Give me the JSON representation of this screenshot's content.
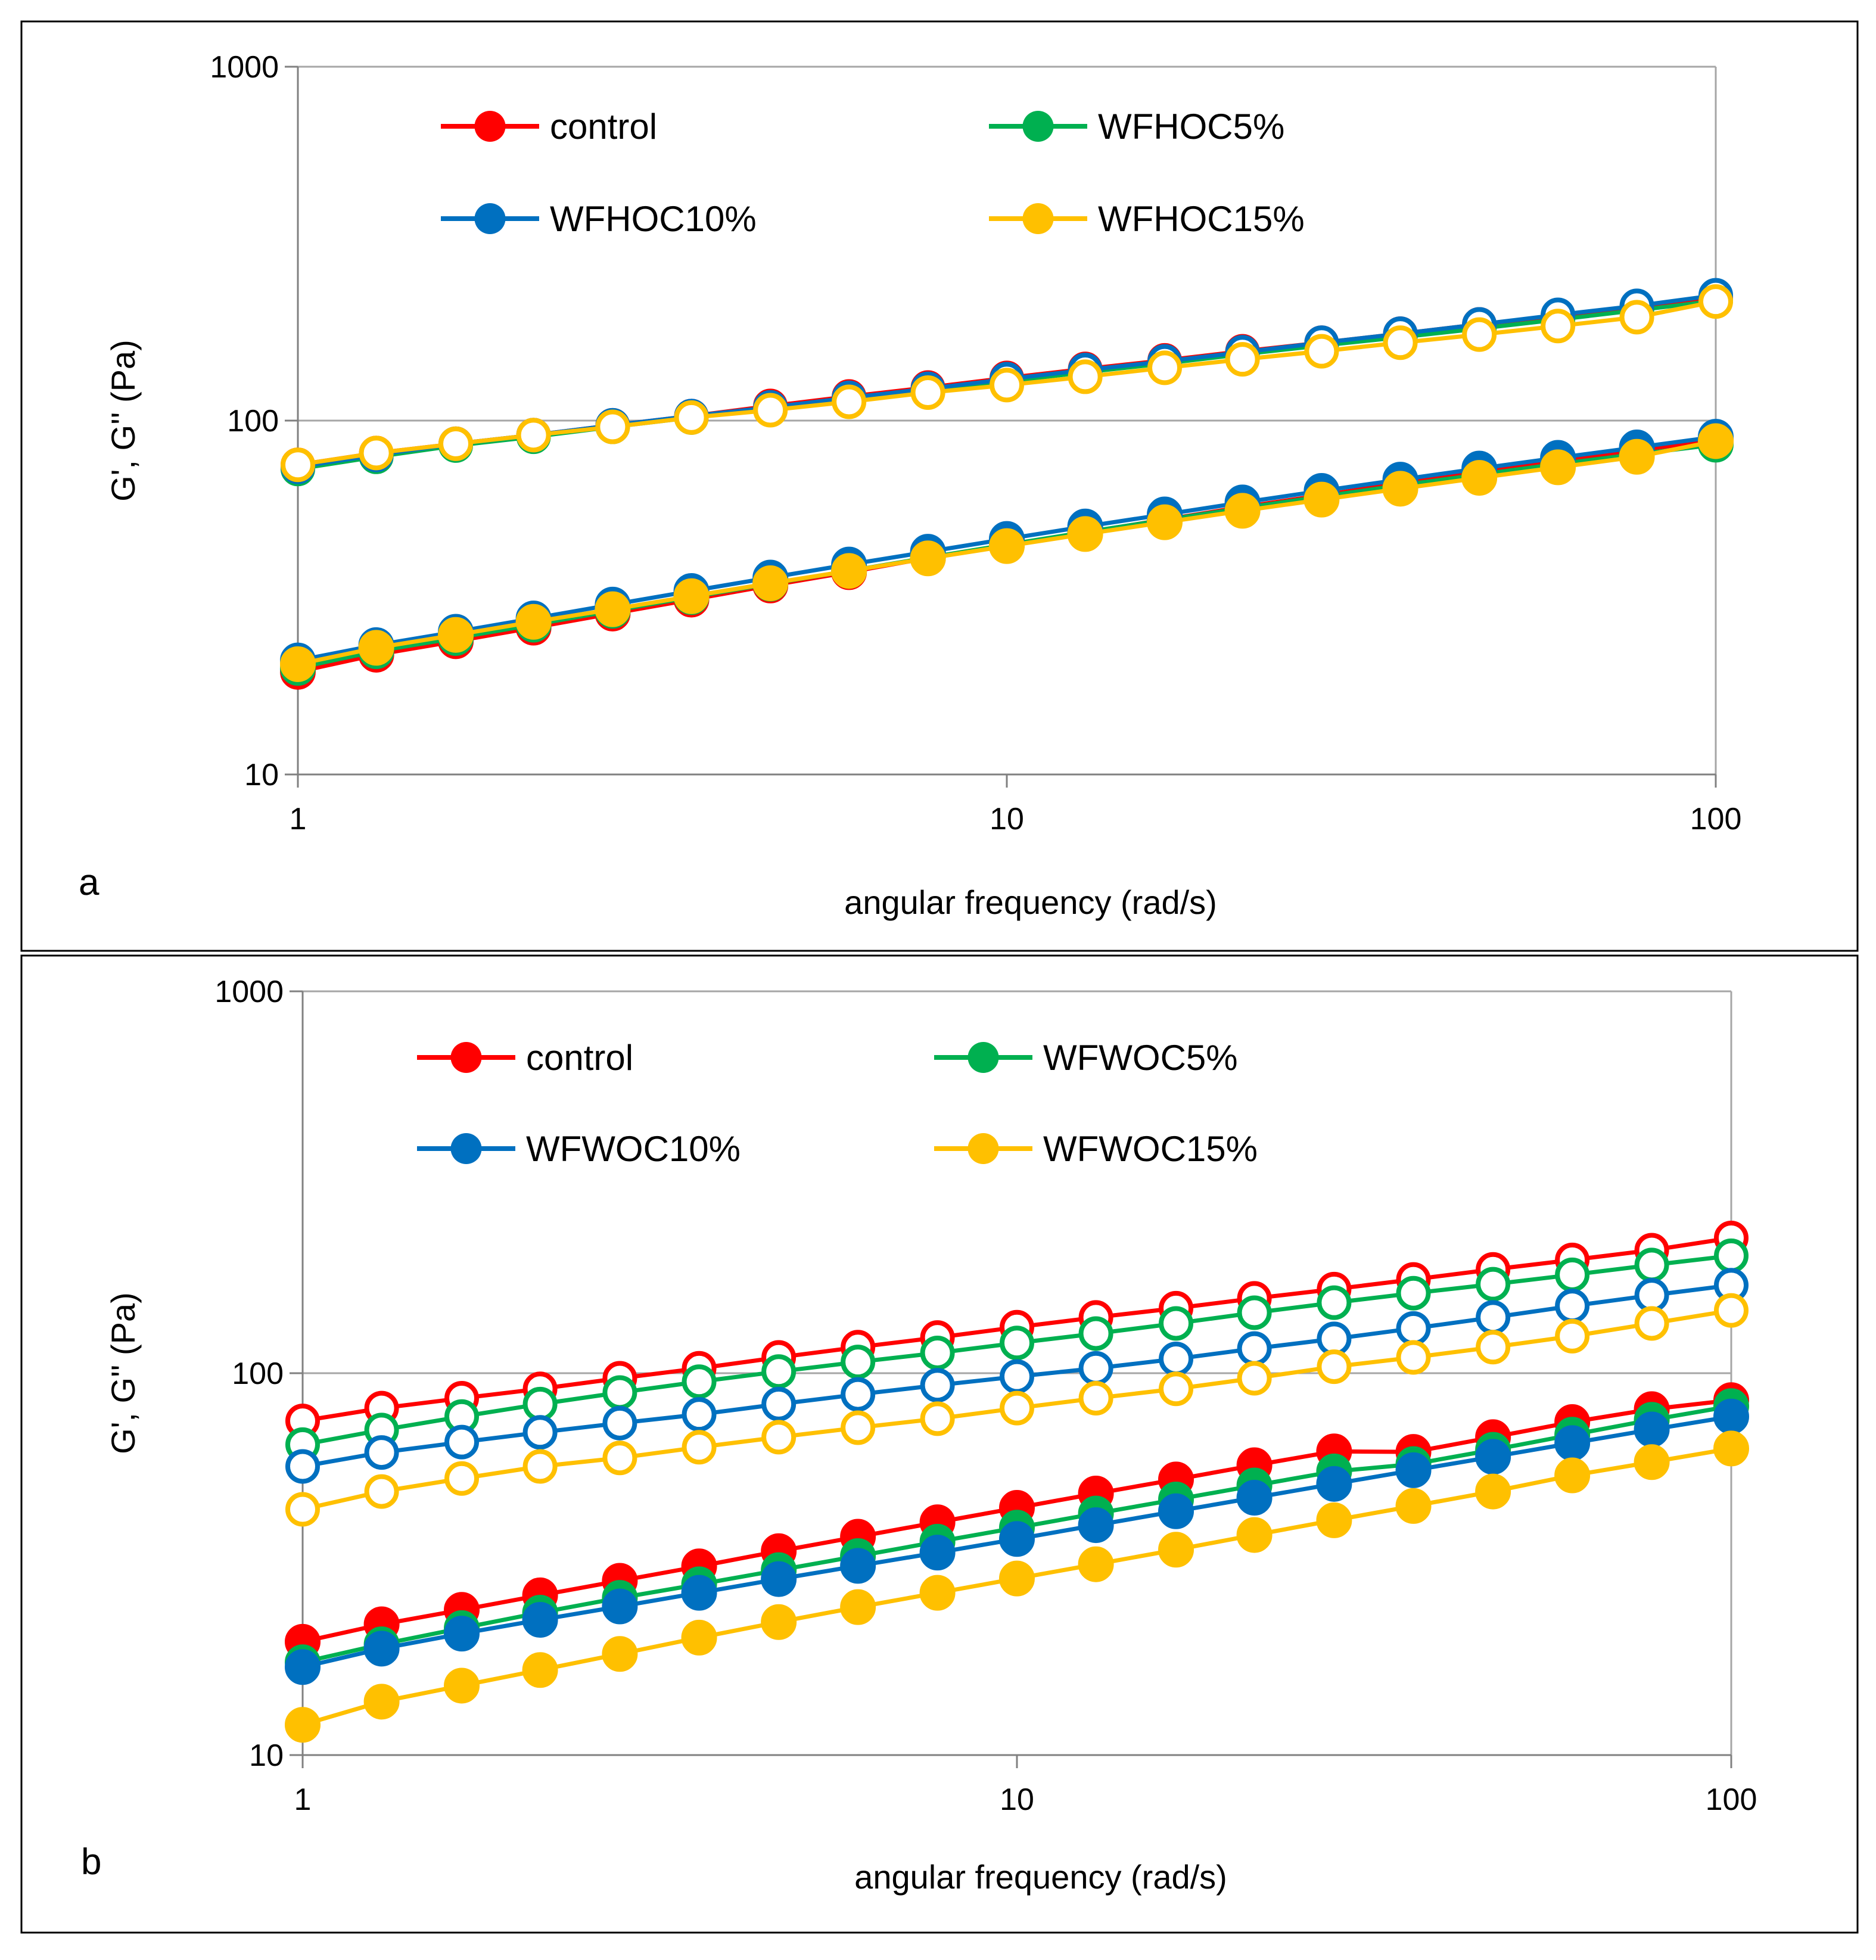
{
  "chart_data": [
    {
      "panel": "a",
      "type": "line",
      "scale": "log-log",
      "title": "",
      "xlabel": "angular frequency (rad/s)",
      "ylabel": "G', G'' (Pa)",
      "xlim": [
        1,
        100
      ],
      "ylim": [
        10,
        1000
      ],
      "x_ticks": [
        "1",
        "10",
        "100"
      ],
      "y_ticks": [
        "10",
        "100",
        "1000"
      ],
      "grid": "horizontal major lines",
      "legend_position": "top, inside plot",
      "x": [
        1,
        1.29,
        1.67,
        2.15,
        2.78,
        3.59,
        4.64,
        5.99,
        7.74,
        10,
        12.9,
        16.7,
        21.5,
        27.8,
        35.9,
        46.4,
        59.9,
        77.4,
        100
      ],
      "series": [
        {
          "name": "control",
          "color": "#ff0000",
          "g_prime": [
            75,
            81,
            86,
            91,
            97,
            103,
            110,
            117,
            124,
            132,
            140,
            148,
            157,
            166,
            176,
            187,
            198,
            210,
            224
          ],
          "g_double_prime": [
            19.5,
            21.8,
            23.8,
            26.0,
            28.5,
            31.2,
            34.2,
            37.3,
            40.9,
            44.5,
            48.3,
            52.5,
            57.0,
            61.5,
            66.5,
            71.5,
            77.0,
            82.5,
            88.0
          ]
        },
        {
          "name": "WFHOC5%",
          "color": "#00b050",
          "g_prime": [
            73,
            79,
            85,
            90,
            96,
            102,
            108,
            115,
            122,
            129,
            137,
            145,
            154,
            163,
            172,
            182,
            193,
            205,
            218
          ],
          "g_double_prime": [
            20.0,
            22.3,
            24.3,
            26.5,
            29.0,
            31.7,
            34.6,
            37.6,
            41.0,
            44.6,
            48.4,
            52.4,
            56.6,
            61.0,
            65.6,
            70.4,
            75.4,
            80.4,
            85.5
          ]
        },
        {
          "name": "WFHOC10%",
          "color": "#0070c0",
          "g_prime": [
            74,
            80,
            86,
            91,
            97,
            103,
            109,
            116,
            123,
            131,
            139,
            147,
            156,
            166,
            176,
            187,
            199,
            211,
            226
          ],
          "g_double_prime": [
            21.0,
            23.2,
            25.3,
            27.6,
            30.2,
            33.0,
            36.0,
            39.2,
            42.6,
            46.3,
            50.2,
            54.3,
            58.7,
            63.3,
            68.1,
            73.2,
            78.5,
            84.0,
            90.0
          ]
        },
        {
          "name": "WFHOC15%",
          "color": "#ffc000",
          "g_prime": [
            75,
            81,
            86,
            91,
            96,
            102,
            107,
            113,
            120,
            126,
            133,
            141,
            149,
            157,
            166,
            175,
            185,
            196,
            217
          ],
          "g_double_prime": [
            20.5,
            22.8,
            24.8,
            27.0,
            29.3,
            31.9,
            34.7,
            37.6,
            40.8,
            44.2,
            47.8,
            51.6,
            55.6,
            59.8,
            64.2,
            68.9,
            73.8,
            79.0,
            87.5
          ]
        }
      ]
    },
    {
      "panel": "b",
      "type": "line",
      "scale": "log-log",
      "title": "",
      "xlabel": "angular frequency (rad/s)",
      "ylabel": "G', G'' (Pa)",
      "xlim": [
        1,
        100
      ],
      "ylim": [
        10,
        1000
      ],
      "x_ticks": [
        "1",
        "10",
        "100"
      ],
      "y_ticks": [
        "10",
        "100",
        "1000"
      ],
      "grid": "horizontal major lines",
      "legend_position": "top, inside plot",
      "x": [
        1,
        1.29,
        1.67,
        2.15,
        2.78,
        3.59,
        4.64,
        5.99,
        7.74,
        10,
        12.9,
        16.7,
        21.5,
        27.8,
        35.9,
        46.4,
        59.9,
        77.4,
        100
      ],
      "series": [
        {
          "name": "control",
          "color": "#ff0000",
          "g_prime": [
            75,
            81,
            86,
            91,
            97,
            103,
            110,
            117,
            124,
            132,
            140,
            148,
            157,
            166,
            176,
            187,
            198,
            210,
            226
          ],
          "g_double_prime": [
            19.8,
            22.0,
            24.0,
            26.2,
            28.6,
            31.2,
            34.2,
            37.3,
            40.7,
            44.4,
            48.4,
            52.7,
            57.4,
            62.4,
            62.2,
            68.0,
            74.5,
            80.5,
            85.0
          ]
        },
        {
          "name": "WFWOC5%",
          "color": "#00b050",
          "g_prime": [
            65,
            71,
            77,
            83,
            89,
            95,
            101,
            107,
            113,
            120,
            127,
            135,
            144,
            153,
            162,
            171,
            181,
            192,
            203
          ]
        },
        {
          "name": "WFWOC10%",
          "color": "#0070c0",
          "g_prime": [
            57,
            62,
            66,
            70,
            74,
            78,
            83,
            88,
            93,
            98,
            103,
            109,
            116,
            123,
            131,
            140,
            150,
            160,
            170
          ]
        },
        {
          "name": "WFWOC15%",
          "color": "#ffc000",
          "g_prime": [
            44,
            49,
            53,
            57,
            60,
            64,
            68,
            72,
            76,
            81,
            86,
            91,
            97,
            104,
            110,
            117,
            125,
            135,
            146
          ]
        }
      ]
    }
  ],
  "panel_b_extra": {
    "g_double_prime": {
      "WFWOC5%": [
        17.5,
        19.5,
        21.5,
        23.6,
        25.8,
        28.0,
        30.5,
        33.2,
        36.2,
        39.4,
        42.9,
        46.7,
        50.8,
        55.3,
        57.8,
        63.0,
        69.0,
        75.5,
        82.0
      ],
      "WFWOC10%": [
        17.0,
        19.0,
        20.8,
        22.6,
        24.5,
        26.6,
        28.9,
        31.3,
        33.9,
        36.8,
        40.0,
        43.5,
        47.2,
        51.3,
        55.7,
        60.4,
        65.6,
        71.2,
        77.0
      ],
      "WFWOC15%": [
        12.0,
        13.8,
        15.2,
        16.7,
        18.4,
        20.3,
        22.3,
        24.4,
        26.6,
        29.0,
        31.6,
        34.5,
        37.7,
        41.2,
        44.9,
        49.0,
        54.0,
        58.5,
        63.5
      ]
    }
  }
}
